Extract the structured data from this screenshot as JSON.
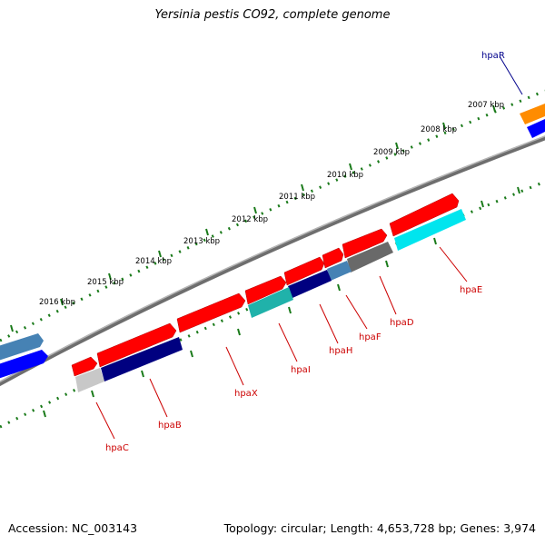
{
  "title": "Yersinia pestis CO92, complete genome",
  "footer": {
    "accession": "Accession: NC_003143",
    "summary": "Topology: circular; Length: 4,653,728 bp; Genes: 3,974"
  },
  "ticks": [
    "2007 kbp",
    "2008 kbp",
    "2009 kbp",
    "2010 kbp",
    "2011 kbp",
    "2012 kbp",
    "2013 kbp",
    "2014 kbp",
    "2015 kbp",
    "2016 kbp"
  ],
  "genes": [
    {
      "name": "hpaR",
      "color": "#00008b"
    },
    {
      "name": "hpaE",
      "color": "#cc0000"
    },
    {
      "name": "hpaD",
      "color": "#cc0000"
    },
    {
      "name": "hpaF",
      "color": "#cc0000"
    },
    {
      "name": "hpaH",
      "color": "#cc0000"
    },
    {
      "name": "hpaI",
      "color": "#cc0000"
    },
    {
      "name": "hpaX",
      "color": "#cc0000"
    },
    {
      "name": "hpaB",
      "color": "#cc0000"
    },
    {
      "name": "hpaC",
      "color": "#cc0000"
    }
  ],
  "colors": {
    "backbone": "#808080",
    "tick": "#1a7a1a",
    "forward_gene": "#ff0000",
    "reverse_gene": "#0000ff",
    "navy": "#000080",
    "cyan": "#00e5ee",
    "teal": "#20b2aa",
    "steelblue": "#4682b4",
    "gray": "#696969",
    "lightgray": "#c8c8c8",
    "orange": "#ff8c00"
  }
}
